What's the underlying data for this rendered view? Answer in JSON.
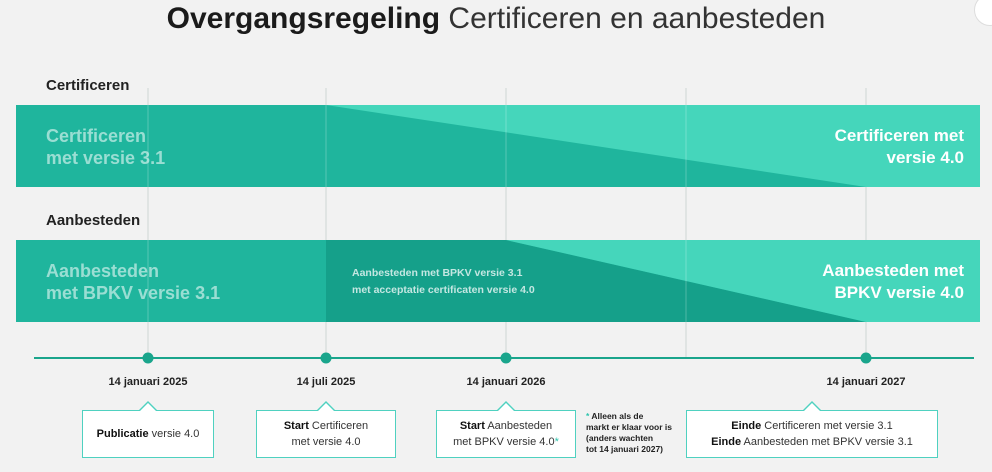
{
  "title": {
    "bold": "Overgangsregeling",
    "light": "Certificeren en aanbesteden"
  },
  "sections": {
    "certificeren": "Certificeren",
    "aanbesteden": "Aanbesteden"
  },
  "bands": {
    "cert_left_1": "Certificeren",
    "cert_left_2": "met versie 3.1",
    "cert_right_1": "Certificeren met",
    "cert_right_2": "versie 4.0",
    "aanb_left_1": "Aanbesteden",
    "aanb_left_2": "met BPKV versie 3.1",
    "aanb_mid_1": "Aanbesteden met BPKV versie 3.1",
    "aanb_mid_2": "met acceptatie certificaten versie 4.0",
    "aanb_right_1": "Aanbesteden met",
    "aanb_right_2": "BPKV versie 4.0"
  },
  "milestones": [
    {
      "date": "14 januari 2025",
      "bold": "Publicatie",
      "text": " versie 4.0"
    },
    {
      "date": "14 juli 2025",
      "bold": "Start",
      "text": " Certificeren",
      "line2": "met versie 4.0"
    },
    {
      "date": "14 januari 2026",
      "bold": "Start",
      "text": " Aanbesteden",
      "line2": "met BPKV versie 4.0",
      "mark": "*"
    },
    {
      "date": "14 januari 2027",
      "bold": "Einde",
      "text": " Certificeren met versie 3.1",
      "bold2": "Einde",
      "text2": " Aanbesteden met BPKV versie 3.1"
    }
  ],
  "footnote": {
    "star": "*",
    "line1": " Alleen als de",
    "line2": "markt er klaar voor is",
    "line3": "(anders wachten",
    "line4": "tot 14 januari 2027)"
  },
  "colors": {
    "teal_dark": "#1fb59d",
    "teal_light": "#45d6bb",
    "teal_deep": "#15a08a",
    "grid": "#cfd6d4",
    "axis": "#1aa58c"
  }
}
